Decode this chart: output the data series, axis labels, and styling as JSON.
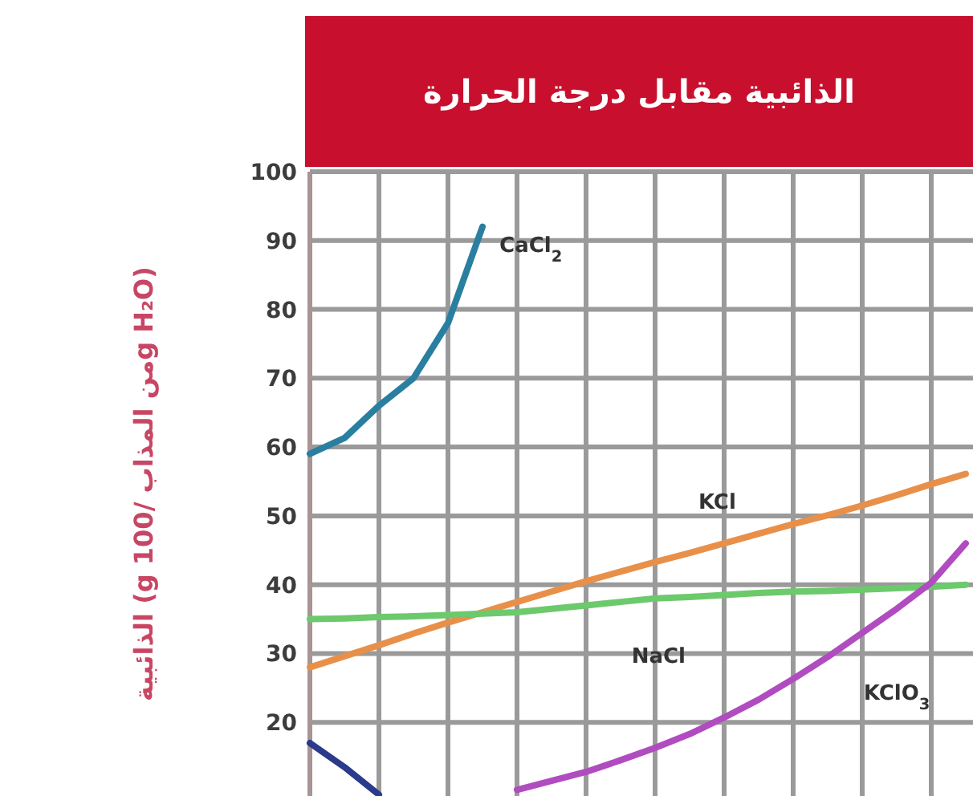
{
  "chart_data": {
    "type": "line",
    "title": "الذائبية مقابل درجة الحرارة",
    "ylabel": "الذائبية (g من المذاب /100g H₂O)",
    "categories": [
      null,
      null,
      null,
      null,
      null,
      null,
      null,
      null,
      null,
      null,
      null,
      null,
      null,
      null,
      null,
      null,
      null,
      null,
      null,
      null
    ],
    "ylim": [
      9.3,
      100
    ],
    "yticks": [
      20,
      30,
      40,
      50,
      60,
      70,
      80,
      90,
      100
    ],
    "grid": true,
    "marker": "none",
    "line_style": "solid",
    "series": [
      {
        "name": "CaCl$_{2}$",
        "color": "#2a7fa0",
        "values": [
          59,
          61.3,
          66,
          70,
          78,
          92,
          null,
          null,
          null,
          null,
          null,
          null,
          null,
          null,
          null,
          null,
          null,
          null,
          null,
          null
        ]
      },
      {
        "name": "KCl",
        "color": "#e8904a",
        "values": [
          28,
          29.6,
          31.2,
          32.9,
          34.5,
          36,
          37.5,
          39,
          40.5,
          41.9,
          43.3,
          44.6,
          46,
          47.4,
          48.8,
          50.1,
          51.5,
          53,
          54.6,
          56.1
        ]
      },
      {
        "name": "NaCl",
        "color": "#6cc96c",
        "values": [
          35,
          35.1,
          35.3,
          35.4,
          35.6,
          35.8,
          36,
          36.5,
          37,
          37.5,
          38,
          38.2,
          38.5,
          38.8,
          39,
          39.1,
          39.3,
          39.5,
          39.7,
          40
        ]
      },
      {
        "name": "KClO$_{3}$",
        "color": "#b04cc0",
        "values": [
          null,
          null,
          null,
          null,
          null,
          null,
          10.2,
          11.5,
          12.8,
          14.5,
          16.3,
          18.3,
          20.7,
          23.3,
          26.3,
          29.5,
          33,
          36.5,
          40.3,
          46
        ]
      },
      {
        "color": "#2b3a8a",
        "values": [
          17,
          13.5,
          9.5,
          null,
          null,
          null,
          null,
          null,
          null,
          null,
          null,
          null,
          null,
          null,
          null,
          null,
          null,
          null,
          null,
          null
        ]
      }
    ]
  }
}
